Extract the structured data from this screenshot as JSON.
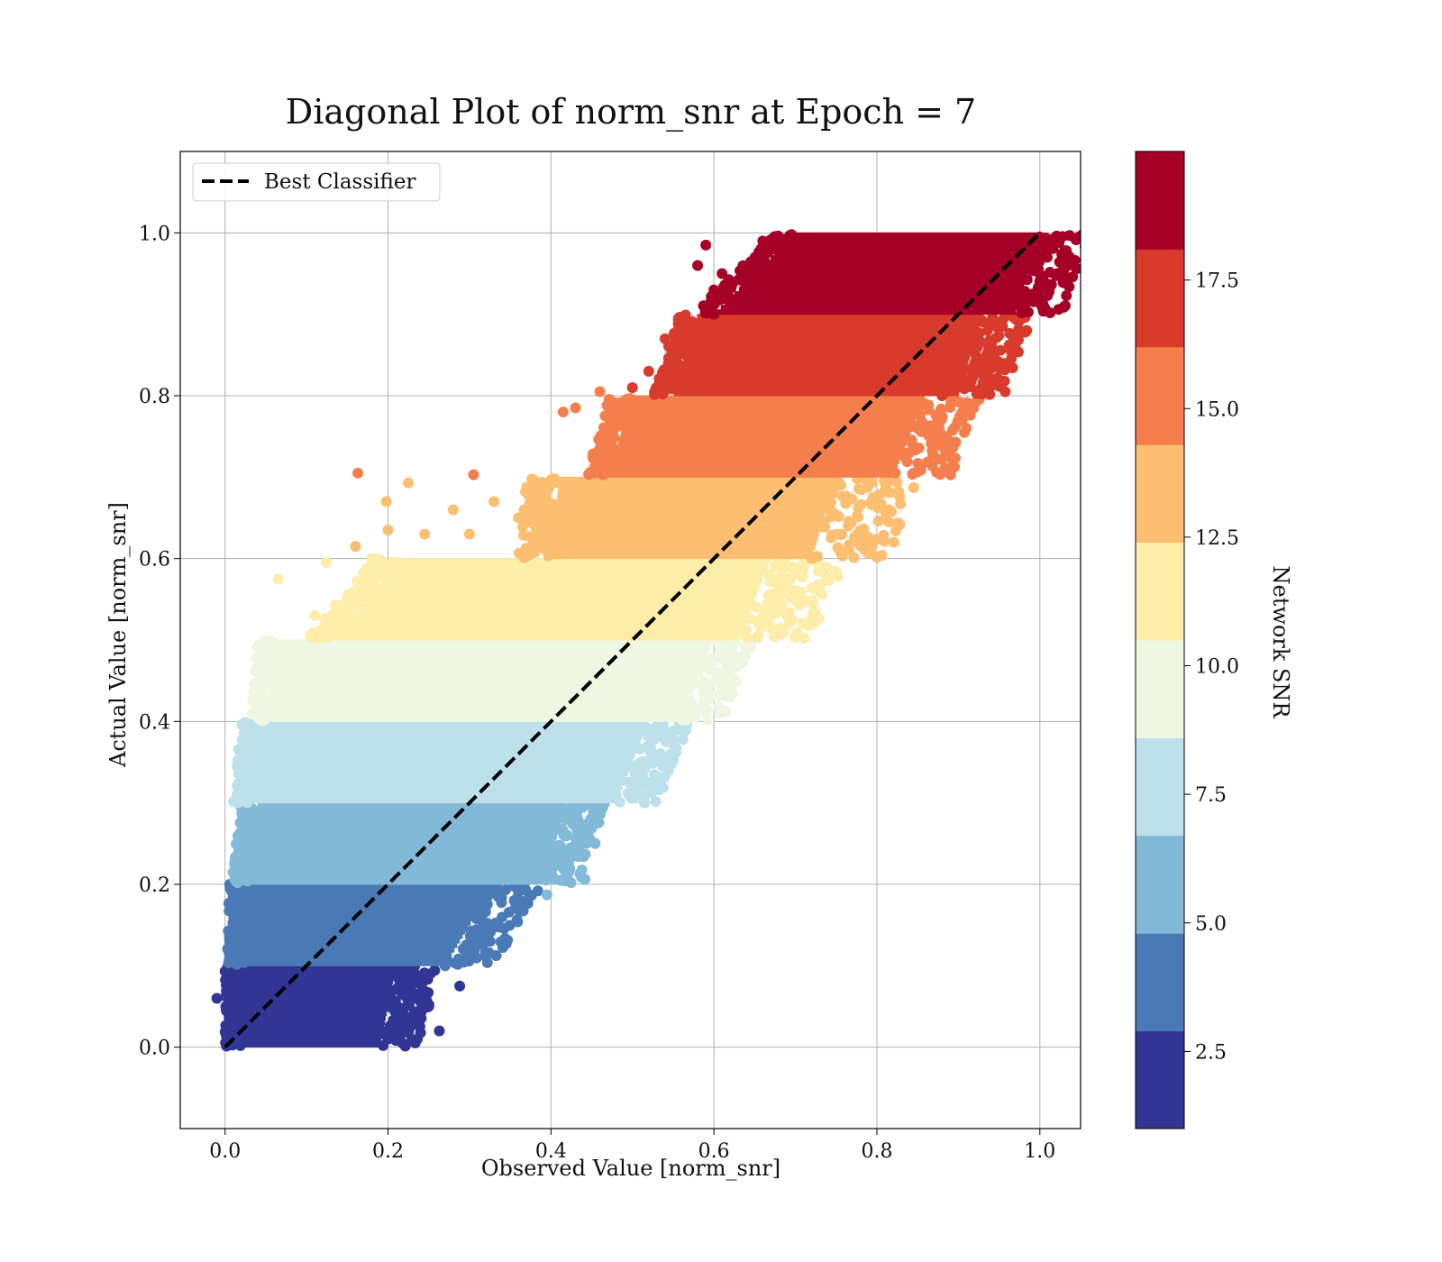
{
  "chart_data": {
    "type": "scatter",
    "title": "Diagonal Plot of norm_snr at Epoch = 7",
    "xlabel": "Observed Value [norm_snr]",
    "ylabel": "Actual Value [norm_snr]",
    "xlim": [
      -0.055,
      1.05
    ],
    "ylim": [
      -0.1,
      1.1
    ],
    "xticks": [
      "0.0",
      "0.2",
      "0.4",
      "0.6",
      "0.8",
      "1.0"
    ],
    "yticks": [
      "0.0",
      "0.2",
      "0.4",
      "0.6",
      "0.8",
      "1.0"
    ],
    "grid": true,
    "legend": {
      "position": "top-left",
      "entries": [
        {
          "label": "Best Classifier",
          "style": "black dashed line"
        }
      ]
    },
    "reference_line": {
      "label": "Best Classifier",
      "x": [
        0,
        1
      ],
      "y": [
        0,
        1
      ],
      "color": "#000000",
      "dash": true
    },
    "colorbar": {
      "label": "Network SNR",
      "range": [
        1.0,
        20.0
      ],
      "ticks": [
        "2.5",
        "5.0",
        "7.5",
        "10.0",
        "12.5",
        "15.0",
        "17.5"
      ],
      "tick_values": [
        2.5,
        5.0,
        7.5,
        10.0,
        12.5,
        15.0,
        17.5
      ],
      "colors": [
        "#313695",
        "#4a7ab5",
        "#82b8d8",
        "#bde0eb",
        "#eff7e2",
        "#fdeda8",
        "#fcbe70",
        "#f47e4c",
        "#d83a2c",
        "#a50026"
      ]
    },
    "bands": [
      {
        "y": [
          0.0,
          0.1
        ],
        "x_min": [
          0.02,
          0.02
        ],
        "x_max": [
          0.19,
          0.21
        ],
        "scatter": 0.05,
        "outliers": [
          [
            -0.01,
            0.06
          ],
          [
            0.0,
            0.093
          ],
          [
            0.236,
            0.01
          ],
          [
            0.263,
            0.02
          ],
          [
            0.288,
            0.075
          ],
          [
            0.25,
            0.05
          ]
        ]
      },
      {
        "y": [
          0.1,
          0.2
        ],
        "x_min": [
          0.025,
          0.028
        ],
        "x_max": [
          0.27,
          0.33
        ],
        "scatter": 0.06,
        "outliers": [
          [
            0.345,
            0.127
          ],
          [
            0.27,
            0.1
          ]
        ]
      },
      {
        "y": [
          0.2,
          0.3
        ],
        "x_min": [
          0.028,
          0.04
        ],
        "x_max": [
          0.39,
          0.42
        ],
        "scatter": 0.05,
        "outliers": [
          [
            0.395,
            0.187
          ],
          [
            0.42,
            0.26
          ],
          [
            0.37,
            0.22
          ],
          [
            0.39,
            0.24
          ],
          [
            0.021,
            0.232
          ]
        ]
      },
      {
        "y": [
          0.3,
          0.4
        ],
        "x_min": [
          0.03,
          0.04
        ],
        "x_max": [
          0.48,
          0.52
        ],
        "scatter": 0.05,
        "outliers": [
          [
            0.5,
            0.32
          ],
          [
            0.48,
            0.31
          ]
        ]
      },
      {
        "y": [
          0.4,
          0.5
        ],
        "x_min": [
          0.05,
          0.06
        ],
        "x_max": [
          0.56,
          0.6
        ],
        "scatter": 0.05,
        "outliers": [
          [
            0.58,
            0.46
          ],
          [
            0.6,
            0.5
          ]
        ]
      },
      {
        "y": [
          0.5,
          0.6
        ],
        "x_min": [
          0.13,
          0.22
        ],
        "x_max": [
          0.63,
          0.67
        ],
        "scatter": 0.09,
        "outliers": [
          [
            0.124,
            0.595
          ],
          [
            0.065,
            0.575
          ],
          [
            0.11,
            0.53
          ],
          [
            0.18,
            0.6
          ],
          [
            0.66,
            0.535
          ]
        ]
      },
      {
        "y": [
          0.6,
          0.7
        ],
        "x_min": [
          0.4,
          0.41
        ],
        "x_max": [
          0.72,
          0.75
        ],
        "scatter": 0.1,
        "outliers": [
          [
            0.225,
            0.693
          ],
          [
            0.198,
            0.67
          ],
          [
            0.16,
            0.615
          ],
          [
            0.2,
            0.635
          ],
          [
            0.245,
            0.63
          ],
          [
            0.28,
            0.66
          ],
          [
            0.3,
            0.63
          ],
          [
            0.33,
            0.67
          ],
          [
            0.36,
            0.65
          ],
          [
            0.75,
            0.63
          ],
          [
            0.72,
            0.6
          ]
        ]
      },
      {
        "y": [
          0.7,
          0.8
        ],
        "x_min": [
          0.47,
          0.5
        ],
        "x_max": [
          0.82,
          0.86
        ],
        "scatter": 0.07,
        "outliers": [
          [
            0.163,
            0.705
          ],
          [
            0.305,
            0.703
          ],
          [
            0.415,
            0.78
          ],
          [
            0.43,
            0.785
          ],
          [
            0.46,
            0.805
          ],
          [
            0.8,
            0.73
          ],
          [
            0.84,
            0.73
          ]
        ]
      },
      {
        "y": [
          0.8,
          0.9
        ],
        "x_min": [
          0.55,
          0.58
        ],
        "x_max": [
          0.9,
          0.93
        ],
        "scatter": 0.06,
        "outliers": [
          [
            0.52,
            0.83
          ],
          [
            0.5,
            0.81
          ],
          [
            0.54,
            0.87
          ],
          [
            0.88,
            0.8
          ],
          [
            0.93,
            0.84
          ],
          [
            0.92,
            0.86
          ]
        ]
      },
      {
        "y": [
          0.9,
          1.0
        ],
        "x_min": [
          0.6,
          0.7
        ],
        "x_max": [
          0.97,
          1.0
        ],
        "scatter": 0.06,
        "outliers": [
          [
            0.59,
            0.985
          ],
          [
            0.58,
            0.96
          ],
          [
            0.6,
            0.93
          ],
          [
            0.61,
            0.95
          ],
          [
            0.6,
            0.9
          ],
          [
            0.66,
            0.99
          ],
          [
            0.985,
            0.96
          ],
          [
            0.99,
            0.99
          ],
          [
            1.0,
            0.995
          ],
          [
            0.97,
            0.94
          ]
        ]
      }
    ]
  }
}
